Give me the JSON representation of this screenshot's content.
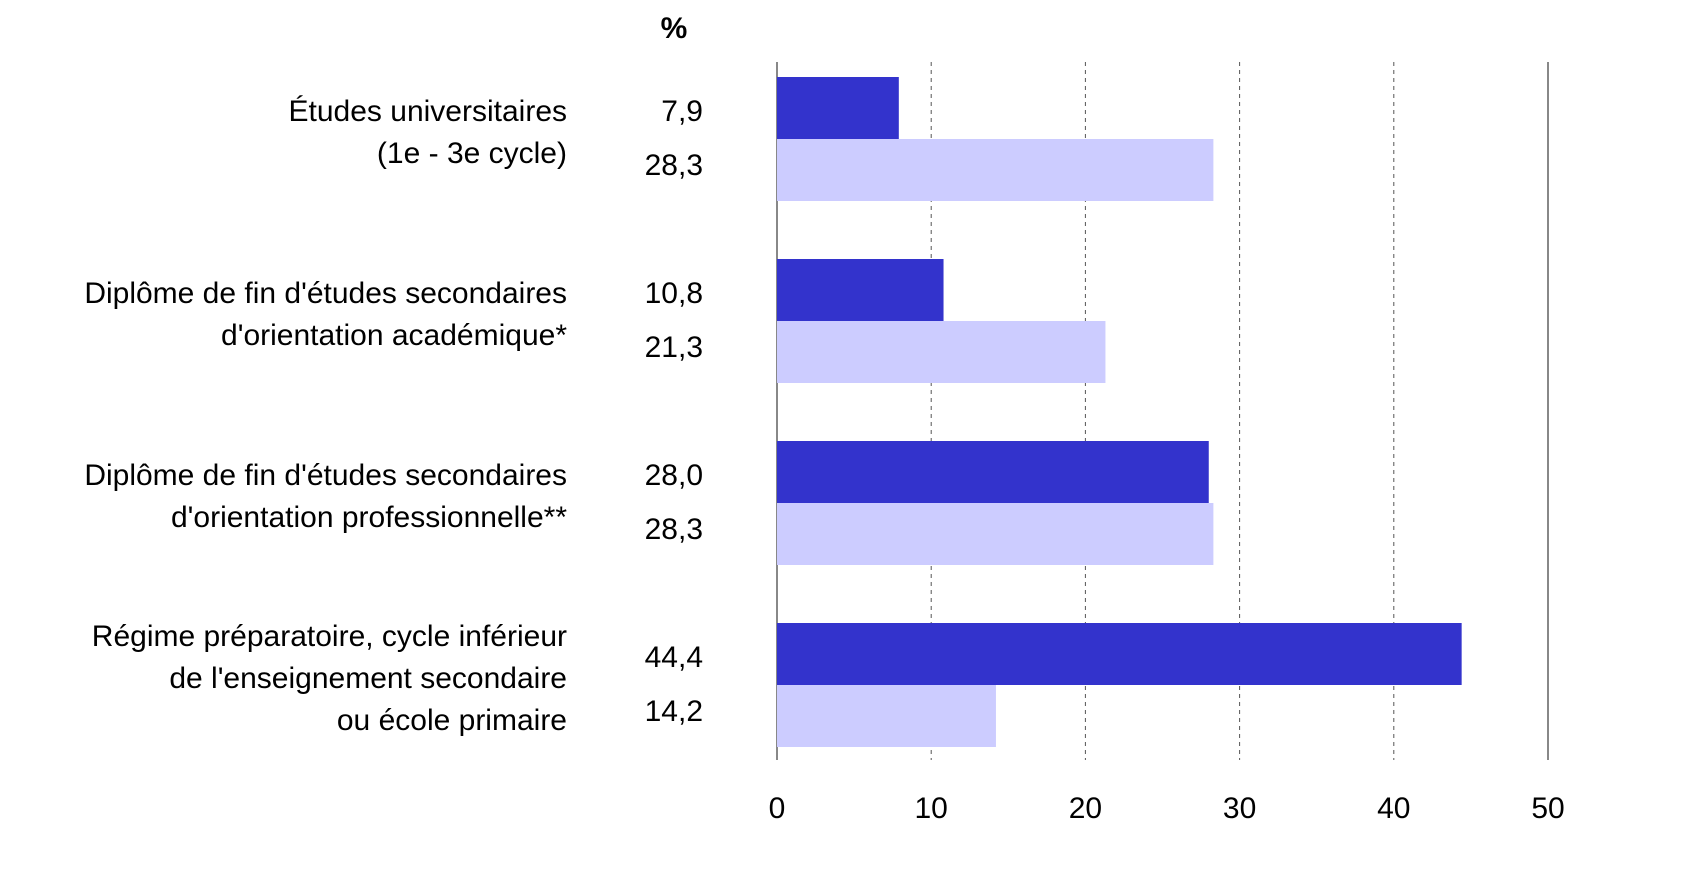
{
  "chart_data": {
    "type": "hbar",
    "unit_label": "%",
    "categories": [
      [
        "Études universitaires",
        "(1e - 3e cycle)"
      ],
      [
        "Diplôme de fin d'études secondaires",
        "d'orientation académique*"
      ],
      [
        "Diplôme de fin d'études secondaires",
        "d'orientation professionnelle**"
      ],
      [
        "Régime préparatoire, cycle inférieur",
        "de l'enseignement secondaire",
        "ou école primaire"
      ]
    ],
    "series": [
      {
        "color": "#3333cc",
        "values": [
          7.9,
          10.8,
          28.0,
          44.4
        ],
        "value_labels": [
          "7,9",
          "10,8",
          "28,0",
          "44,4"
        ]
      },
      {
        "color": "#ccccff",
        "values": [
          28.3,
          21.3,
          28.3,
          14.2
        ],
        "value_labels": [
          "28,3",
          "21,3",
          "28,3",
          "14,2"
        ]
      }
    ],
    "xlim": [
      0,
      50
    ],
    "xticks": [
      0,
      10,
      20,
      30,
      40,
      50
    ],
    "grid": true
  }
}
